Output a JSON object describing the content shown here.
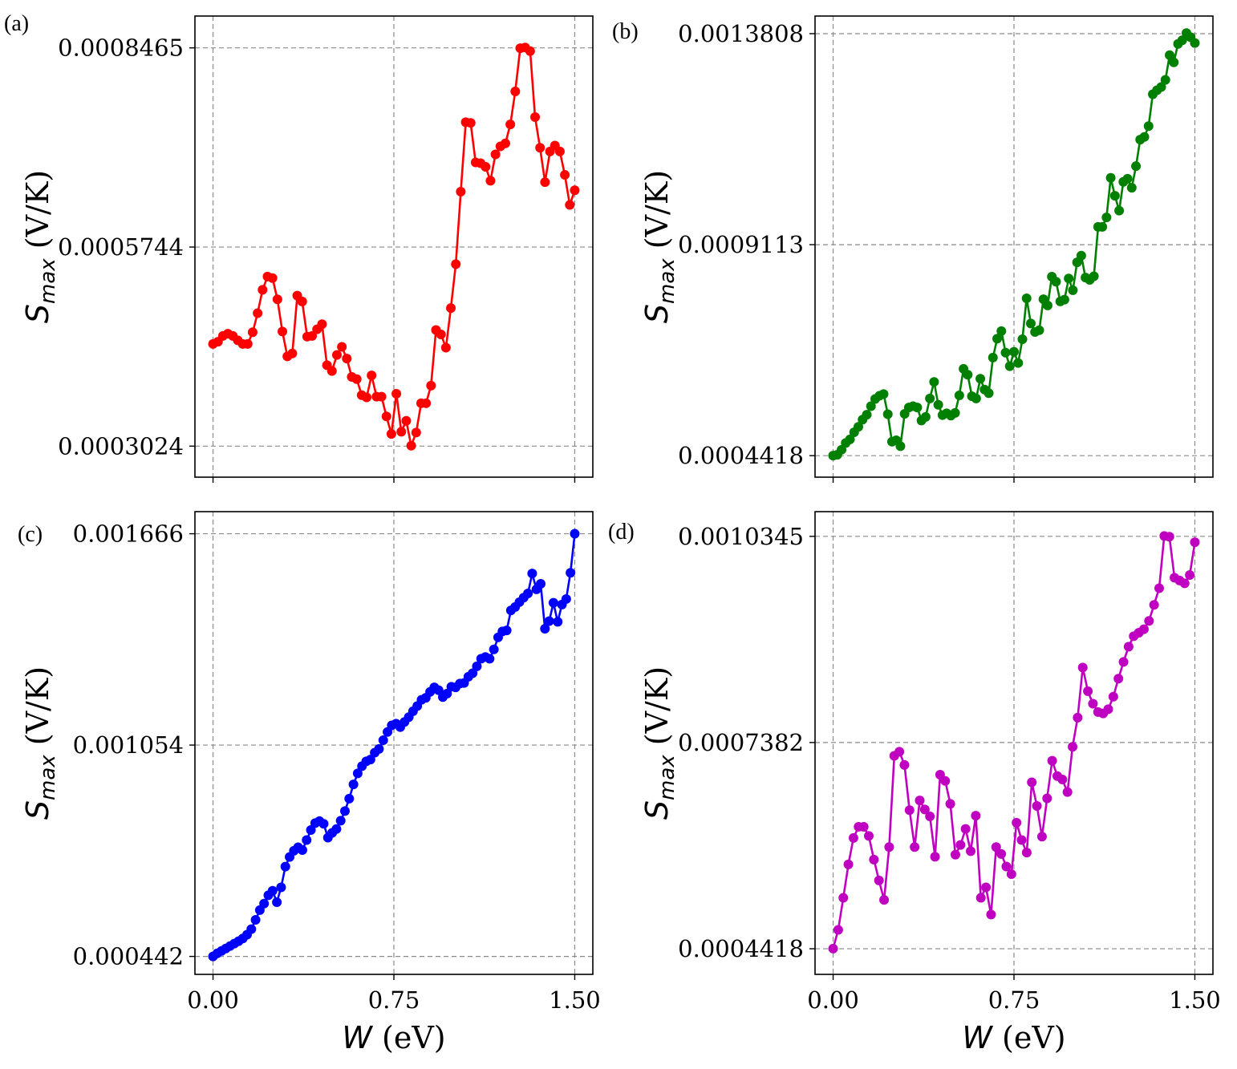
{
  "chart_data": [
    {
      "panel": "(a)",
      "type": "line",
      "color": "#ff0000",
      "xlabel": {
        "var": "W",
        "unit": " (eV)"
      },
      "ylabel": {
        "var": "S",
        "sub": "max",
        "unit": " (V/K)"
      },
      "xlim": [
        -0.075,
        1.575
      ],
      "ylim": [
        0.00026,
        0.00089
      ],
      "xticks": [
        0.0,
        0.75,
        1.5
      ],
      "xtick_labels": [
        "0.00",
        "0.75",
        "1.50"
      ],
      "yticks": [
        0.0003024,
        0.0005744,
        0.0008465
      ],
      "ytick_labels": [
        "0.0003024",
        "0.0005744",
        "0.0008465"
      ],
      "show_x_labels": false,
      "grid": true,
      "x_start": 0.0,
      "x_end": 1.5,
      "y": [
        0.000442,
        0.000445,
        0.000453,
        0.000456,
        0.000453,
        0.000447,
        0.000442,
        0.000442,
        0.000458,
        0.000484,
        0.000516,
        0.000534,
        0.000532,
        0.000503,
        0.000459,
        0.000425,
        0.000429,
        0.000508,
        0.0005,
        0.000452,
        0.000453,
        0.000462,
        0.000469,
        0.000413,
        0.000405,
        0.000427,
        0.000438,
        0.000422,
        0.000397,
        0.000394,
        0.000372,
        0.000369,
        0.000399,
        0.00037,
        0.00037,
        0.000343,
        0.000319,
        0.000374,
        0.000322,
        0.000337,
        0.000303,
        0.000321,
        0.000361,
        0.000361,
        0.000385,
        0.000461,
        0.000455,
        0.000437,
        0.000491,
        0.000551,
        0.00065,
        0.000745,
        0.000744,
        0.00069,
        0.000689,
        0.000684,
        0.000665,
        0.000701,
        0.000712,
        0.000716,
        0.000742,
        0.000787,
        0.000846,
        0.000847,
        0.000842,
        0.000752,
        0.00071,
        0.000663,
        0.000705,
        0.000713,
        0.000705,
        0.000673,
        0.000632,
        0.000652
      ],
      "point_count": 74
    },
    {
      "panel": "(b)",
      "type": "line",
      "color": "#008000",
      "xlabel": {
        "var": "W",
        "unit": " (eV)"
      },
      "ylabel": {
        "var": "S",
        "sub": "max",
        "unit": " (V/K)"
      },
      "xlim": [
        -0.075,
        1.575
      ],
      "ylim": [
        0.000394,
        0.00142
      ],
      "xticks": [
        0.0,
        0.75,
        1.5
      ],
      "xtick_labels": [
        "0.00",
        "0.75",
        "1.50"
      ],
      "yticks": [
        0.0004418,
        0.0009113,
        0.0013808
      ],
      "ytick_labels": [
        "0.0004418",
        "0.0009113",
        "0.0013808"
      ],
      "show_x_labels": false,
      "grid": true,
      "x_start": 0.0,
      "x_end": 1.5,
      "y": [
        0.000442,
        0.000444,
        0.000455,
        0.00047,
        0.000478,
        0.000494,
        0.000506,
        0.000522,
        0.000533,
        0.000552,
        0.000568,
        0.000575,
        0.000579,
        0.000534,
        0.000473,
        0.000476,
        0.000463,
        0.000535,
        0.000549,
        0.000552,
        0.000549,
        0.00052,
        0.000528,
        0.000569,
        0.000606,
        0.000555,
        0.000532,
        0.000536,
        0.000531,
        0.000537,
        0.000576,
        0.000635,
        0.000622,
        0.000574,
        0.000569,
        0.000613,
        0.000589,
        0.000581,
        0.00066,
        0.000702,
        0.000719,
        0.000671,
        0.000641,
        0.000673,
        0.000648,
        0.000701,
        0.000792,
        0.000736,
        0.000717,
        0.000721,
        0.00079,
        0.000776,
        0.00084,
        0.000829,
        0.000785,
        0.000789,
        0.000836,
        0.00081,
        0.000872,
        0.000887,
        0.000838,
        0.000833,
        0.000841,
        0.000951,
        0.000951,
        0.000972,
        0.00106,
        0.00102,
        0.000987,
        0.001051,
        0.001058,
        0.001038,
        0.001086,
        0.001145,
        0.001151,
        0.001175,
        0.001246,
        0.001255,
        0.001262,
        0.001278,
        0.001333,
        0.001317,
        0.001358,
        0.001366,
        0.001382,
        0.001373,
        0.00136
      ],
      "point_count": 87
    },
    {
      "panel": "(c)",
      "type": "line",
      "color": "#0000ff",
      "xlabel": {
        "var": "W",
        "unit": " (eV)"
      },
      "ylabel": {
        "var": "S",
        "sub": "max",
        "unit": " (V/K)"
      },
      "xlim": [
        -0.075,
        1.575
      ],
      "ylim": [
        0.00039,
        0.00173
      ],
      "xticks": [
        0.0,
        0.75,
        1.5
      ],
      "xtick_labels": [
        "0.00",
        "0.75",
        "1.50"
      ],
      "yticks": [
        0.000442,
        0.001054,
        0.001666
      ],
      "ytick_labels": [
        "0.000442",
        "0.001054",
        "0.001666"
      ],
      "show_x_labels": true,
      "grid": true,
      "x_start": 0.0,
      "x_end": 1.5,
      "y": [
        0.000442,
        0.000451,
        0.000458,
        0.000465,
        0.000472,
        0.000479,
        0.000486,
        0.000494,
        0.000505,
        0.000521,
        0.000548,
        0.000576,
        0.000595,
        0.000619,
        0.000632,
        0.000599,
        0.000642,
        0.000702,
        0.00073,
        0.000748,
        0.000758,
        0.00075,
        0.000779,
        0.000808,
        0.000828,
        0.000834,
        0.000826,
        0.000786,
        0.0008,
        0.000811,
        0.000835,
        0.000863,
        0.000899,
        0.00094,
        0.000972,
        0.000993,
        0.001007,
        0.001012,
        0.001032,
        0.001043,
        0.001068,
        0.001092,
        0.001111,
        0.001116,
        0.001106,
        0.001121,
        0.001135,
        0.001152,
        0.001167,
        0.001185,
        0.001191,
        0.001208,
        0.001221,
        0.001213,
        0.001193,
        0.001203,
        0.001223,
        0.001221,
        0.001232,
        0.001234,
        0.001252,
        0.001262,
        0.001282,
        0.001304,
        0.001309,
        0.001304,
        0.001331,
        0.001366,
        0.001383,
        0.001386,
        0.001444,
        0.001454,
        0.001468,
        0.001481,
        0.001493,
        0.001551,
        0.001505,
        0.001521,
        0.001391,
        0.001413,
        0.001466,
        0.001411,
        0.001461,
        0.001477,
        0.001553,
        0.001666
      ],
      "point_count": 86
    },
    {
      "panel": "(d)",
      "type": "line",
      "color": "#c000c0",
      "xlabel": {
        "var": "W",
        "unit": " (eV)"
      },
      "ylabel": {
        "var": "S",
        "sub": "max",
        "unit": " (V/K)"
      },
      "xlim": [
        -0.075,
        1.575
      ],
      "ylim": [
        0.000405,
        0.00107
      ],
      "xticks": [
        0.0,
        0.75,
        1.5
      ],
      "xtick_labels": [
        "0.00",
        "0.75",
        "1.50"
      ],
      "yticks": [
        0.0004418,
        0.0007382,
        0.0010345
      ],
      "ytick_labels": [
        "0.0004418",
        "0.0007382",
        "0.0010345"
      ],
      "show_x_labels": true,
      "grid": true,
      "x_start": 0.0,
      "x_end": 1.5,
      "y": [
        0.000442,
        0.000469,
        0.000515,
        0.000563,
        0.000601,
        0.000617,
        0.000617,
        0.000604,
        0.00057,
        0.00054,
        0.000512,
        0.000588,
        0.000719,
        0.000725,
        0.000706,
        0.000641,
        0.000588,
        0.000655,
        0.000642,
        0.000632,
        0.000574,
        0.000692,
        0.000683,
        0.00065,
        0.000577,
        0.000591,
        0.000614,
        0.000582,
        0.000633,
        0.000515,
        0.00053,
        0.000491,
        0.000588,
        0.000578,
        0.00056,
        0.000549,
        0.000623,
        0.000598,
        0.00058,
        0.000681,
        0.000647,
        0.000603,
        0.000658,
        0.000712,
        0.00069,
        0.000685,
        0.000667,
        0.000732,
        0.000774,
        0.000846,
        0.000812,
        0.000794,
        0.000782,
        0.00078,
        0.000786,
        0.000804,
        0.00083,
        0.000854,
        0.000876,
        0.000891,
        0.000896,
        0.000901,
        0.000913,
        0.000936,
        0.00096,
        0.001035,
        0.001034,
        0.000975,
        0.000971,
        0.000967,
        0.000979,
        0.001026
      ],
      "point_count": 72
    }
  ]
}
